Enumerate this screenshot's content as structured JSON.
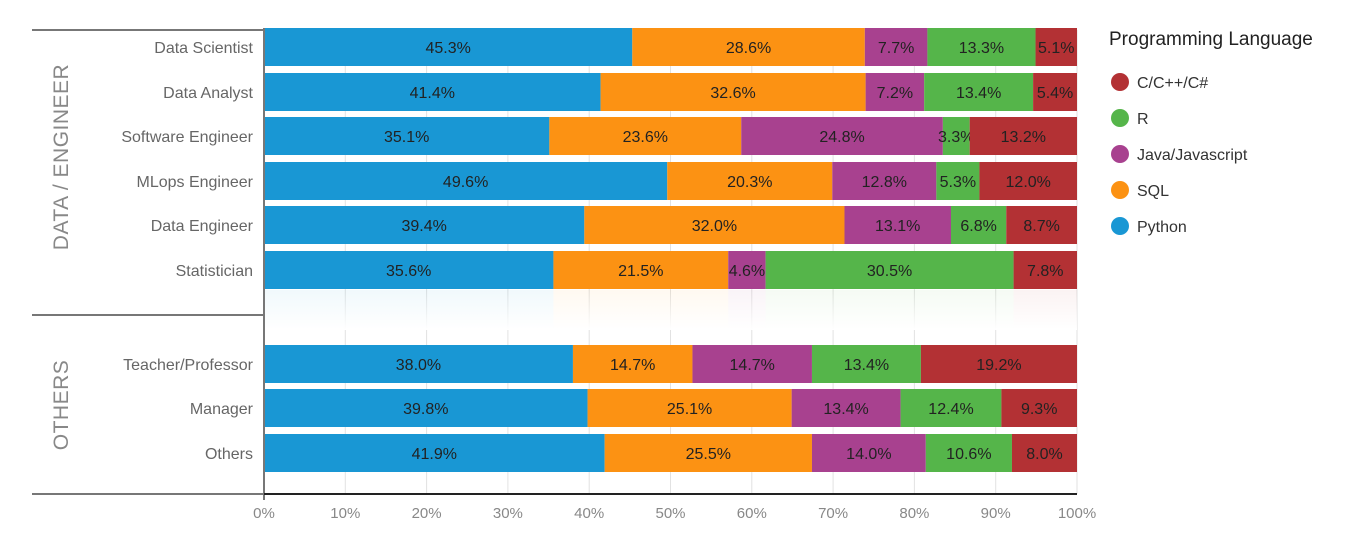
{
  "chart_data": {
    "type": "bar",
    "orientation": "horizontal",
    "stacked": "percent",
    "groups": [
      {
        "name": "DATA / ENGINEER",
        "categories": [
          "Data Scientist",
          "Data Analyst",
          "Software Engineer",
          "MLops Engineer",
          "Data Engineer",
          "Statistician"
        ]
      },
      {
        "name": "OTHERS",
        "categories": [
          "Teacher/Professor",
          "Manager",
          "Others"
        ]
      }
    ],
    "categories": [
      "Data Scientist",
      "Data Analyst",
      "Software Engineer",
      "MLops Engineer",
      "Data Engineer",
      "Statistician",
      "Teacher/Professor",
      "Manager",
      "Others"
    ],
    "series": [
      {
        "name": "Python",
        "color": "#1997d4",
        "values": [
          45.3,
          41.4,
          35.1,
          49.6,
          39.4,
          35.6,
          38.0,
          39.8,
          41.9
        ]
      },
      {
        "name": "SQL",
        "color": "#fc9213",
        "values": [
          28.6,
          32.6,
          23.6,
          20.3,
          32.0,
          21.5,
          14.7,
          25.1,
          25.5
        ]
      },
      {
        "name": "Java/Javascript",
        "color": "#a8418f",
        "values": [
          7.7,
          7.2,
          24.8,
          12.8,
          13.1,
          4.6,
          14.7,
          13.4,
          14.0
        ]
      },
      {
        "name": "R",
        "color": "#55b54a",
        "values": [
          13.3,
          13.4,
          3.3,
          5.3,
          6.8,
          30.5,
          13.4,
          12.4,
          10.6
        ]
      },
      {
        "name": "C/C++/C#",
        "color": "#b33134",
        "values": [
          5.1,
          5.4,
          13.2,
          12.0,
          8.7,
          7.8,
          19.2,
          9.3,
          8.0
        ]
      }
    ],
    "xlim": [
      0,
      100
    ],
    "xticks": [
      "0%",
      "10%",
      "20%",
      "30%",
      "40%",
      "50%",
      "60%",
      "70%",
      "80%",
      "90%",
      "100%"
    ],
    "grid": true,
    "legend": {
      "title": "Programming Language",
      "placement": "right",
      "order": [
        "C/C++/C#",
        "R",
        "Java/Javascript",
        "SQL",
        "Python"
      ]
    }
  }
}
